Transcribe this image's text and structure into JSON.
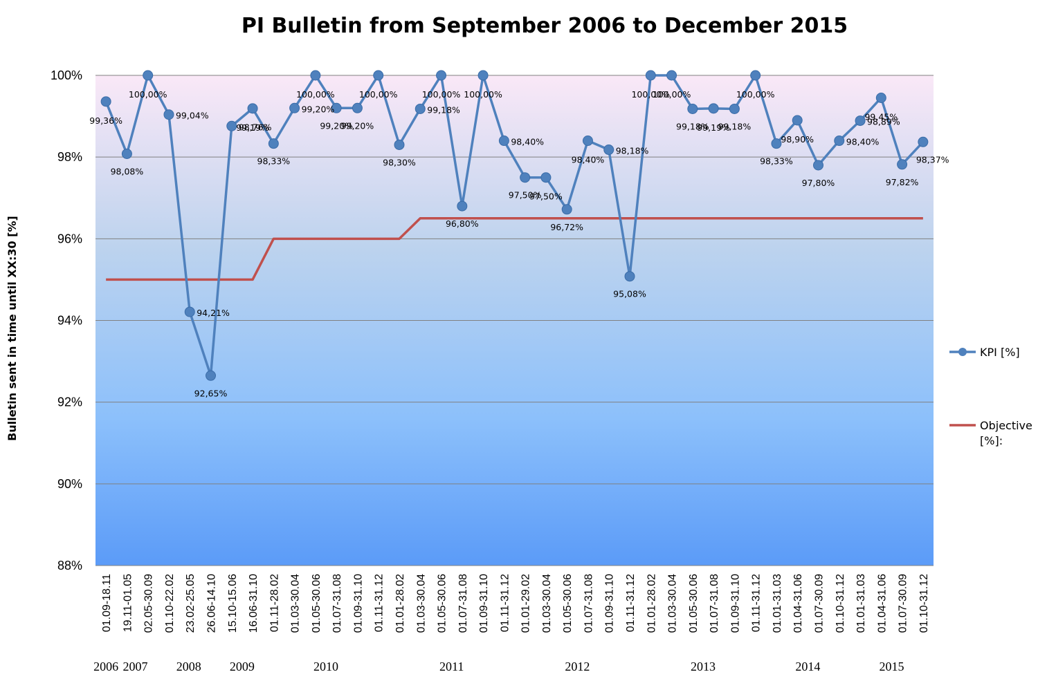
{
  "chart_data": {
    "type": "line",
    "title": "PI Bulletin from September 2006 to December 2015",
    "ylabel": "Bulletin  sent in time until XX:30 [%]",
    "xlabel": "",
    "ylim": [
      88,
      100
    ],
    "yticks": [
      88,
      90,
      92,
      94,
      96,
      98,
      100
    ],
    "ytick_labels": [
      "88%",
      "90%",
      "92%",
      "94%",
      "96%",
      "98%",
      "100%"
    ],
    "grid": true,
    "legend_position": "right",
    "categories": [
      "01.09-18.11",
      "19.11-01.05",
      "02.05-30.09",
      "01.10-22.02",
      "23.02-25.05",
      "26.06-14.10",
      "15.10-15.06",
      "16.06-31.10",
      "01.11-28.02",
      "01.03-30.04",
      "01.05-30.06",
      "01.07-31.08",
      "01.09-31.10",
      "01.11-31.12",
      "01.01-28.02",
      "01.03-30.04",
      "01.05-30.06",
      "01.07-31.08",
      "01.09-31.10",
      "01.11-31.12",
      "01.01-29.02",
      "01.03-30.04",
      "01.05-30.06",
      "01.07-31.08",
      "01.09-31.10",
      "01.11-31.12",
      "01.01-28.02",
      "01.03-30.04",
      "01.05-30.06",
      "01.07-31.08",
      "01.09-31.10",
      "01.11-31.12",
      "01.01-31.03",
      "01.04-31.06",
      "01.07-30.09",
      "01.10-31.12",
      "01.01-31.03",
      "01.04-31.06",
      "01.07-30.09",
      "01.10-31.12"
    ],
    "years": [
      {
        "label": "2006",
        "index": 0
      },
      {
        "label": "2007",
        "index": 1.4
      },
      {
        "label": "2008",
        "index": 3.95
      },
      {
        "label": "2009",
        "index": 6.5
      },
      {
        "label": "2010",
        "index": 10.5
      },
      {
        "label": "2011",
        "index": 16.5
      },
      {
        "label": "2012",
        "index": 22.5
      },
      {
        "label": "2013",
        "index": 28.5
      },
      {
        "label": "2014",
        "index": 33.5
      },
      {
        "label": "2015",
        "index": 37.5
      }
    ],
    "series": [
      {
        "name": "KPI [%]",
        "color": "#4F81BD",
        "values": [
          99.36,
          98.08,
          100,
          99.04,
          94.21,
          92.65,
          98.76,
          99.19,
          98.33,
          99.2,
          100,
          99.2,
          99.2,
          100,
          98.3,
          99.18,
          100,
          96.8,
          100,
          98.4,
          97.5,
          97.5,
          96.72,
          98.4,
          98.18,
          95.08,
          100,
          100,
          99.18,
          99.19,
          99.18,
          100,
          98.33,
          98.9,
          97.8,
          98.4,
          98.89,
          99.45,
          97.82,
          98.37
        ],
        "labels": [
          "99,36%",
          "98,08%",
          "100,00%",
          "99,04%",
          "94,21%",
          "92,65%",
          "98,76%",
          "99,19%",
          "98,33%",
          "99,20%",
          "100,00%",
          "99,20%",
          "99,20%",
          "100,00%",
          "98,30%",
          "99,18%",
          "100,00%",
          "96,80%",
          "100,00%",
          "98,40%",
          "97,50%",
          "97,50%",
          "96,72%",
          "98,40%",
          "98,18%",
          "95,08%",
          "100,00%",
          "100,00%",
          "99,18%",
          "99,19%",
          "99,18%",
          "100,00%",
          "98,33%",
          "98,90%",
          "97,80%",
          "98,40%",
          "98,89%",
          "99,45%",
          "97,82%",
          "98,37%"
        ]
      },
      {
        "name": "Objective [%]:",
        "color": "#C0504D",
        "values": [
          95,
          95,
          95,
          95,
          95,
          95,
          95,
          95,
          96,
          96,
          96,
          96,
          96,
          96,
          96,
          96.5,
          96.5,
          96.5,
          96.5,
          96.5,
          96.5,
          96.5,
          96.5,
          96.5,
          96.5,
          96.5,
          96.5,
          96.5,
          96.5,
          96.5,
          96.5,
          96.5,
          96.5,
          96.5,
          96.5,
          96.5,
          96.5,
          96.5,
          96.5,
          96.5
        ]
      }
    ],
    "colors": {
      "plot_top": "#FAE8F7",
      "plot_bottom": "#5B9BF8",
      "grid": "#808080"
    }
  }
}
